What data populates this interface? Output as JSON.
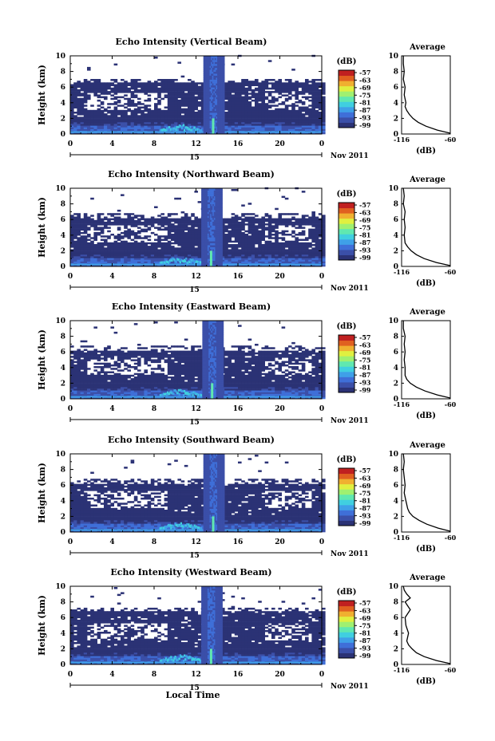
{
  "figure": {
    "shared_xlabel": "Local Time",
    "date_label": "Nov 2011",
    "day_label": "15",
    "cbar_unit": "(dB)",
    "avg_title": "Average",
    "avg_xlabel": "(dB)"
  },
  "colors": {
    "background_echo": "#2b3275",
    "noise_blank": "#ffffff",
    "colormap": [
      "#2b3275",
      "#3b4fa8",
      "#3f6fd8",
      "#3fa0e8",
      "#40cfe0",
      "#60e8b0",
      "#a0f070",
      "#e0f040",
      "#f0b030",
      "#e06020",
      "#c02020"
    ]
  },
  "chart_data": [
    {
      "type": "heatmap",
      "title": "Echo Intensity (Vertical Beam)",
      "ylabel": "Height (km)",
      "xlabel": "",
      "x_ticks": [
        "0",
        "4",
        "8",
        "12",
        "16",
        "20",
        "0"
      ],
      "y_ticks": [
        "0",
        "2",
        "4",
        "6",
        "8",
        "10"
      ],
      "xlim": [
        0,
        24
      ],
      "ylim": [
        0,
        10
      ],
      "colorbar_ticks": [
        "-57",
        "-63",
        "-69",
        "-75",
        "-81",
        "-87",
        "-93",
        "-99"
      ],
      "colorbar_range": [
        -99,
        -57
      ],
      "echo_top_km": 6.4,
      "storm_time_h": 13.6,
      "average_profile": {
        "title": "Average",
        "xlabel": "(dB)",
        "x_ticks": [
          "-116",
          "-60"
        ],
        "y_ticks": [
          "0",
          "2",
          "4",
          "6",
          "8",
          "10"
        ],
        "xlim": [
          -116,
          -60
        ],
        "values": [
          {
            "h": 0.1,
            "db": -60
          },
          {
            "h": 0.5,
            "db": -75
          },
          {
            "h": 1,
            "db": -88
          },
          {
            "h": 1.5,
            "db": -97
          },
          {
            "h": 2,
            "db": -103
          },
          {
            "h": 2.5,
            "db": -107
          },
          {
            "h": 3,
            "db": -110
          },
          {
            "h": 3.5,
            "db": -112
          },
          {
            "h": 4,
            "db": -111
          },
          {
            "h": 5,
            "db": -113
          },
          {
            "h": 6,
            "db": -112
          },
          {
            "h": 7,
            "db": -114
          },
          {
            "h": 8,
            "db": -113
          },
          {
            "h": 9,
            "db": -114
          },
          {
            "h": 10,
            "db": -114
          }
        ]
      }
    },
    {
      "type": "heatmap",
      "title": "Echo Intensity (Northward Beam)",
      "ylabel": "Height (km)",
      "xlabel": "",
      "x_ticks": [
        "0",
        "4",
        "8",
        "12",
        "16",
        "20",
        "0"
      ],
      "y_ticks": [
        "0",
        "2",
        "4",
        "6",
        "8",
        "10"
      ],
      "xlim": [
        0,
        24
      ],
      "ylim": [
        0,
        10
      ],
      "colorbar_ticks": [
        "-57",
        "-63",
        "-69",
        "-75",
        "-81",
        "-87",
        "-93",
        "-99"
      ],
      "colorbar_range": [
        -99,
        -57
      ],
      "echo_top_km": 6.0,
      "storm_time_h": 13.4,
      "average_profile": {
        "title": "Average",
        "xlabel": "(dB)",
        "x_ticks": [
          "-116",
          "-60"
        ],
        "y_ticks": [
          "0",
          "2",
          "4",
          "6",
          "8",
          "10"
        ],
        "xlim": [
          -116,
          -60
        ],
        "values": [
          {
            "h": 0.1,
            "db": -60
          },
          {
            "h": 0.5,
            "db": -76
          },
          {
            "h": 1,
            "db": -90
          },
          {
            "h": 1.5,
            "db": -99
          },
          {
            "h": 2,
            "db": -105
          },
          {
            "h": 2.5,
            "db": -109
          },
          {
            "h": 3,
            "db": -112
          },
          {
            "h": 4,
            "db": -113
          },
          {
            "h": 5,
            "db": -112
          },
          {
            "h": 6,
            "db": -113
          },
          {
            "h": 7,
            "db": -112
          },
          {
            "h": 8,
            "db": -114
          },
          {
            "h": 9,
            "db": -113
          },
          {
            "h": 10,
            "db": -114
          }
        ]
      }
    },
    {
      "type": "heatmap",
      "title": "Echo Intensity (Eastward Beam)",
      "ylabel": "Height (km)",
      "xlabel": "",
      "x_ticks": [
        "0",
        "4",
        "8",
        "12",
        "16",
        "20",
        "0"
      ],
      "y_ticks": [
        "0",
        "2",
        "4",
        "6",
        "8",
        "10"
      ],
      "xlim": [
        0,
        24
      ],
      "ylim": [
        0,
        10
      ],
      "colorbar_ticks": [
        "-57",
        "-63",
        "-69",
        "-75",
        "-81",
        "-87",
        "-93",
        "-99"
      ],
      "colorbar_range": [
        -99,
        -57
      ],
      "echo_top_km": 6.0,
      "storm_time_h": 13.5,
      "average_profile": {
        "title": "Average",
        "xlabel": "(dB)",
        "x_ticks": [
          "-116",
          "-60"
        ],
        "y_ticks": [
          "0",
          "2",
          "4",
          "6",
          "8",
          "10"
        ],
        "xlim": [
          -116,
          -60
        ],
        "values": [
          {
            "h": 0.1,
            "db": -60
          },
          {
            "h": 0.5,
            "db": -75
          },
          {
            "h": 1,
            "db": -89
          },
          {
            "h": 1.5,
            "db": -99
          },
          {
            "h": 2,
            "db": -106
          },
          {
            "h": 2.5,
            "db": -110
          },
          {
            "h": 3,
            "db": -112
          },
          {
            "h": 4,
            "db": -112
          },
          {
            "h": 5,
            "db": -113
          },
          {
            "h": 6,
            "db": -112
          },
          {
            "h": 7,
            "db": -113
          },
          {
            "h": 8,
            "db": -112
          },
          {
            "h": 9,
            "db": -114
          },
          {
            "h": 10,
            "db": -114
          }
        ]
      }
    },
    {
      "type": "heatmap",
      "title": "Echo Intensity (Southward Beam)",
      "ylabel": "Height (km)",
      "xlabel": "",
      "x_ticks": [
        "0",
        "4",
        "8",
        "12",
        "16",
        "20",
        "0"
      ],
      "y_ticks": [
        "0",
        "2",
        "4",
        "6",
        "8",
        "10"
      ],
      "xlim": [
        0,
        24
      ],
      "ylim": [
        0,
        10
      ],
      "colorbar_ticks": [
        "-57",
        "-63",
        "-69",
        "-75",
        "-81",
        "-87",
        "-93",
        "-99"
      ],
      "colorbar_range": [
        -99,
        -57
      ],
      "echo_top_km": 6.0,
      "storm_time_h": 13.6,
      "average_profile": {
        "title": "Average",
        "xlabel": "(dB)",
        "x_ticks": [
          "-116",
          "-60"
        ],
        "y_ticks": [
          "0",
          "2",
          "4",
          "6",
          "8",
          "10"
        ],
        "xlim": [
          -116,
          -60
        ],
        "values": [
          {
            "h": 0.1,
            "db": -60
          },
          {
            "h": 0.5,
            "db": -74
          },
          {
            "h": 1,
            "db": -87
          },
          {
            "h": 1.5,
            "db": -96
          },
          {
            "h": 2,
            "db": -103
          },
          {
            "h": 2.5,
            "db": -107
          },
          {
            "h": 3,
            "db": -109
          },
          {
            "h": 4,
            "db": -111
          },
          {
            "h": 5,
            "db": -113
          },
          {
            "h": 6,
            "db": -112
          },
          {
            "h": 7,
            "db": -113
          },
          {
            "h": 8,
            "db": -114
          },
          {
            "h": 9,
            "db": -113
          },
          {
            "h": 10,
            "db": -114
          }
        ]
      }
    },
    {
      "type": "heatmap",
      "title": "Echo Intensity (Westward Beam)",
      "ylabel": "Height (km)",
      "xlabel": "Local Time",
      "x_ticks": [
        "0",
        "4",
        "8",
        "12",
        "16",
        "20",
        "0"
      ],
      "y_ticks": [
        "0",
        "2",
        "4",
        "6",
        "8",
        "10"
      ],
      "xlim": [
        0,
        24
      ],
      "ylim": [
        0,
        10
      ],
      "colorbar_ticks": [
        "-57",
        "-63",
        "-69",
        "-75",
        "-81",
        "-87",
        "-93",
        "-99"
      ],
      "colorbar_range": [
        -99,
        -57
      ],
      "echo_top_km": 6.6,
      "storm_time_h": 13.4,
      "average_profile": {
        "title": "Average",
        "xlabel": "(dB)",
        "x_ticks": [
          "-116",
          "-60"
        ],
        "y_ticks": [
          "0",
          "2",
          "4",
          "6",
          "8",
          "10"
        ],
        "xlim": [
          -116,
          -60
        ],
        "values": [
          {
            "h": 0.1,
            "db": -60
          },
          {
            "h": 0.5,
            "db": -76
          },
          {
            "h": 1,
            "db": -90
          },
          {
            "h": 1.5,
            "db": -99
          },
          {
            "h": 2,
            "db": -104
          },
          {
            "h": 2.5,
            "db": -108
          },
          {
            "h": 3,
            "db": -110
          },
          {
            "h": 4,
            "db": -108
          },
          {
            "h": 5,
            "db": -111
          },
          {
            "h": 6,
            "db": -112
          },
          {
            "h": 7,
            "db": -106
          },
          {
            "h": 7.5,
            "db": -109
          },
          {
            "h": 8,
            "db": -112
          },
          {
            "h": 8.5,
            "db": -106
          },
          {
            "h": 9,
            "db": -110
          },
          {
            "h": 9.5,
            "db": -113
          },
          {
            "h": 10,
            "db": -114
          }
        ]
      }
    }
  ]
}
